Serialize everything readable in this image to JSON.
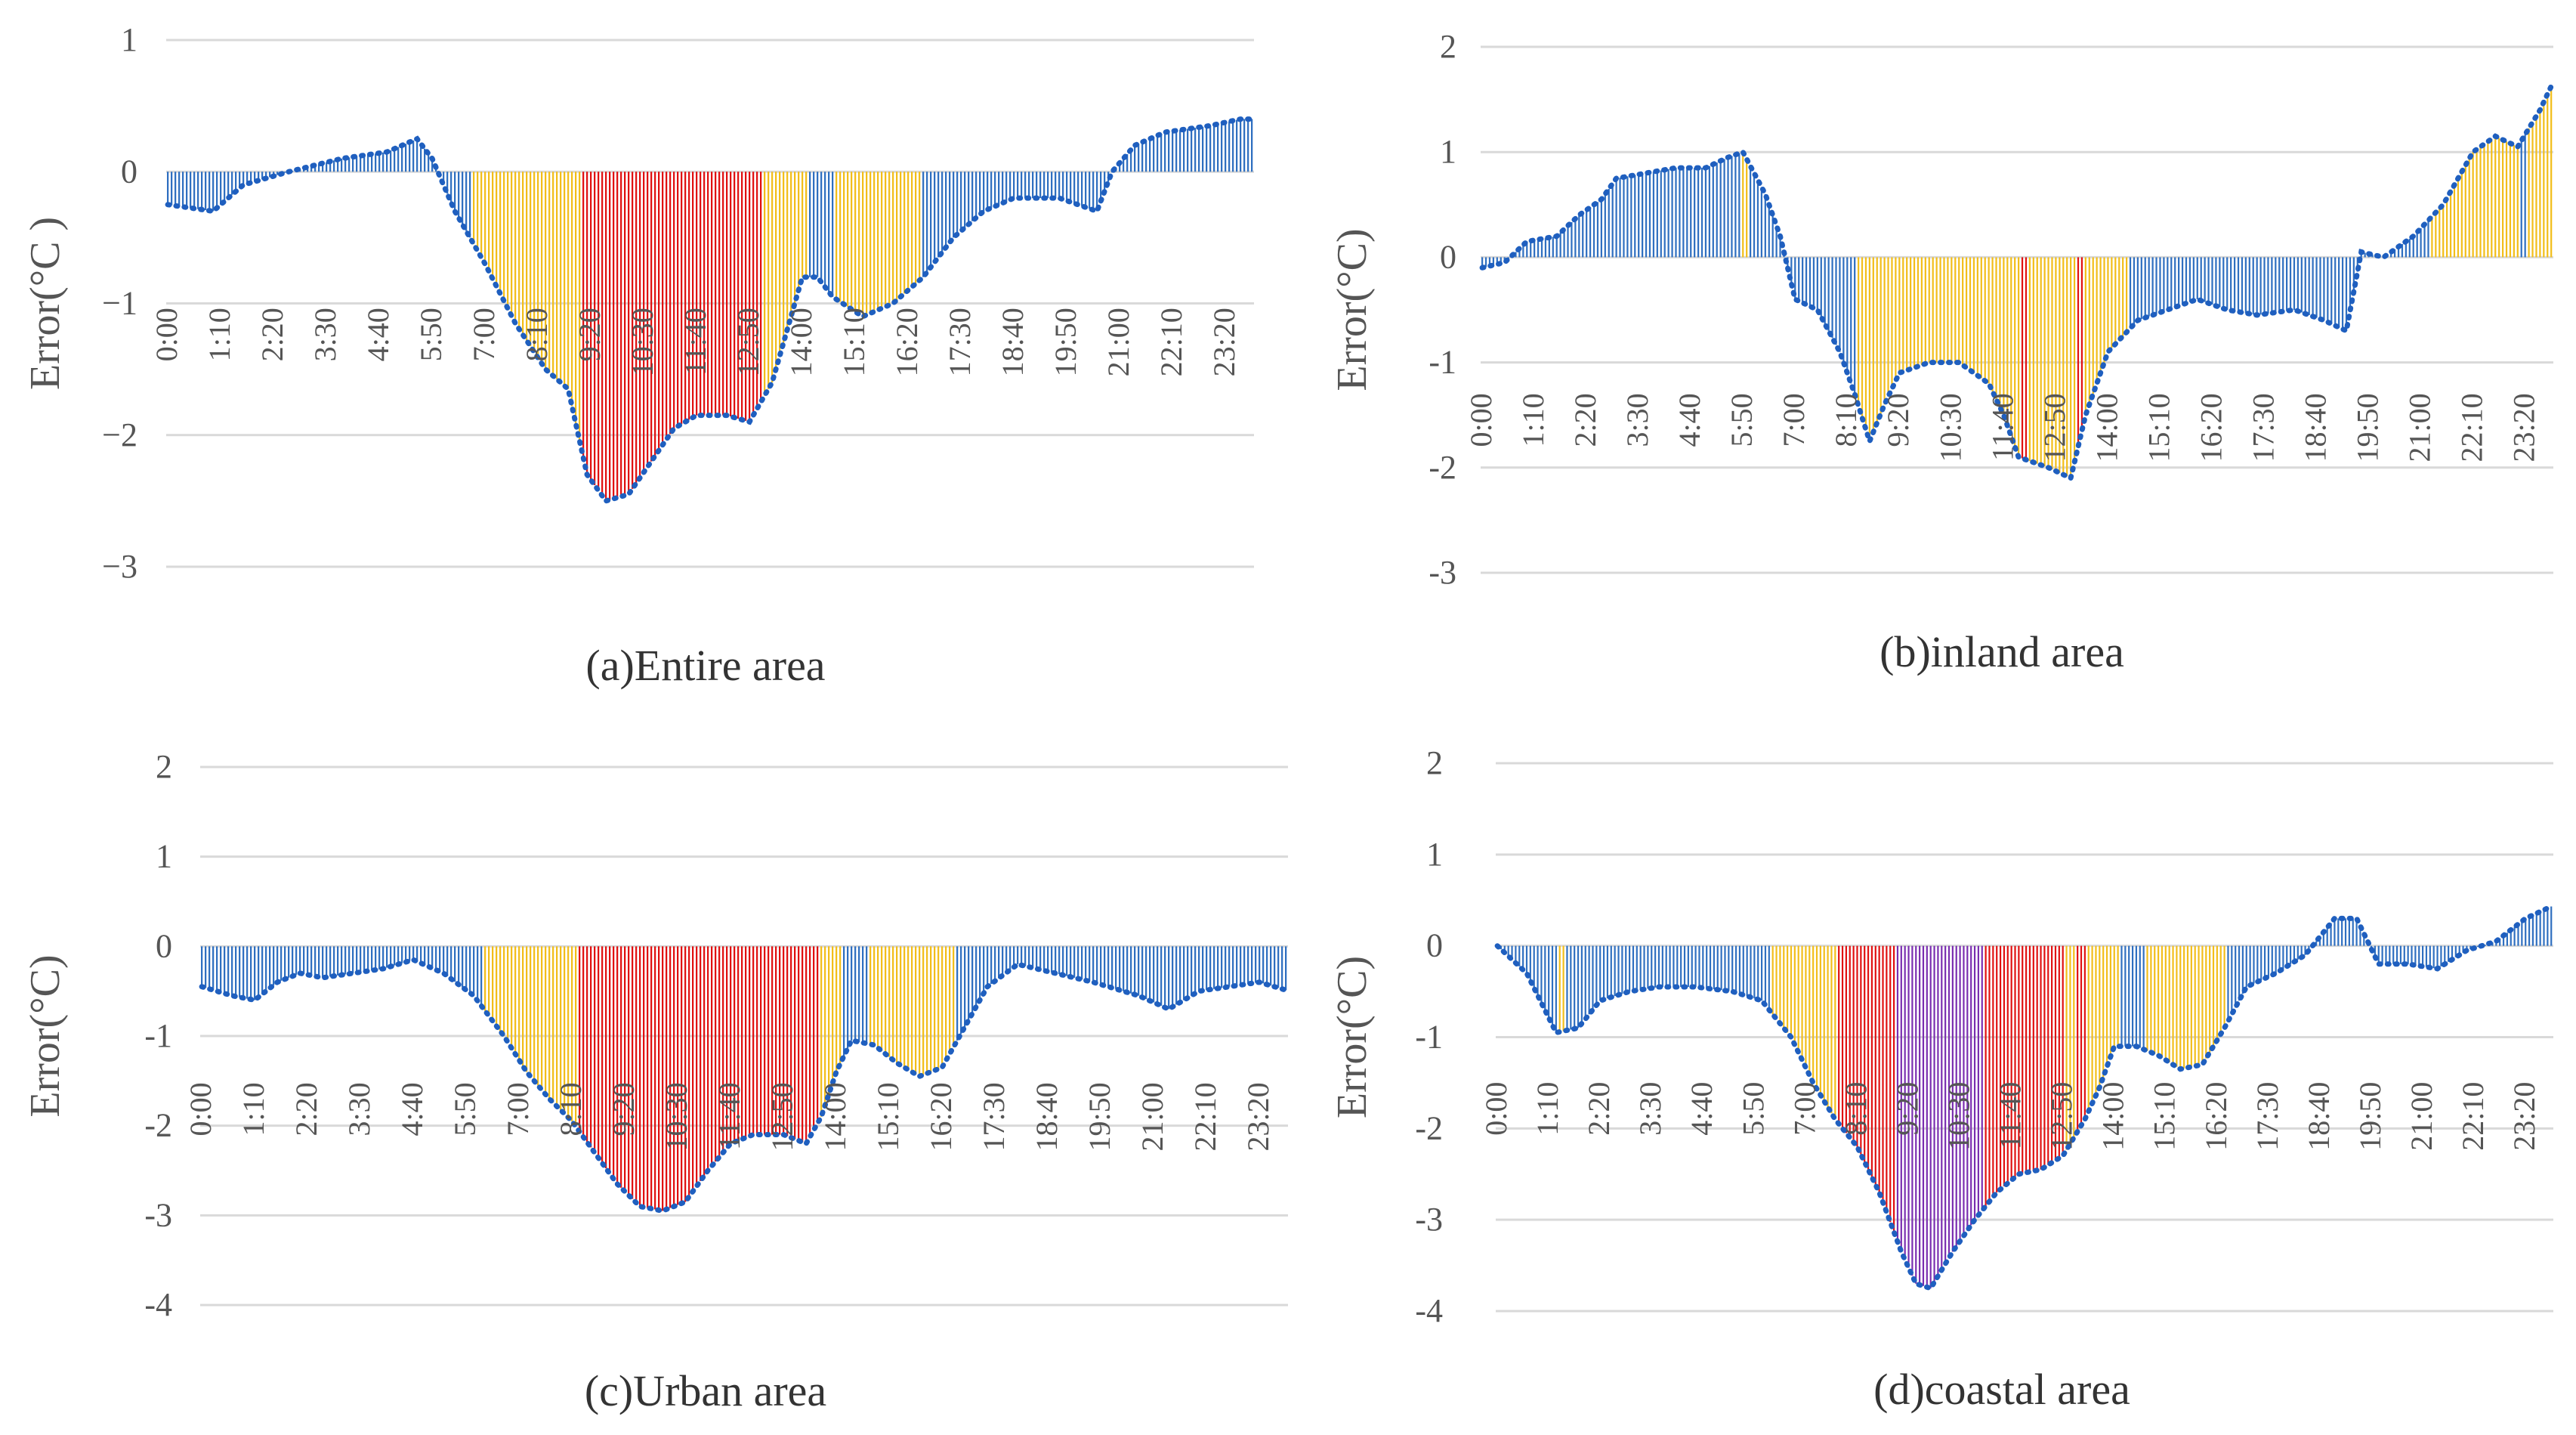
{
  "colors": {
    "blue": "#2F6FC0",
    "yellow": "#F2BE1A",
    "red": "#E01010",
    "purple": "#7A2DB0",
    "grid": "#D9D9D9",
    "text": "#555555",
    "caption": "#333333",
    "dots": "#1F5FBF"
  },
  "chart_data": [
    {
      "id": "entire",
      "type": "bar",
      "title": "(a)Entire area",
      "ylabel": "Error(°C )",
      "ylim": [
        -3,
        1
      ],
      "yticks": [
        1,
        0,
        -1,
        -2,
        -3
      ],
      "ytick_labels": [
        "1",
        "0",
        "−1",
        "−2",
        "−3"
      ],
      "xtick_labels": [
        "0:00",
        "1:10",
        "2:20",
        "3:30",
        "4:40",
        "5:50",
        "7:00",
        "8:10",
        "9:20",
        "10:30",
        "11:40",
        "12:50",
        "14:00",
        "15:10",
        "16:20",
        "17:30",
        "18:40",
        "19:50",
        "21:00",
        "22:10",
        "23:20"
      ],
      "profile": [
        [
          0,
          -0.25
        ],
        [
          60,
          -0.3
        ],
        [
          100,
          -0.1
        ],
        [
          160,
          0.0
        ],
        [
          230,
          0.1
        ],
        [
          290,
          0.15
        ],
        [
          330,
          0.25
        ],
        [
          350,
          0.1
        ],
        [
          380,
          -0.3
        ],
        [
          420,
          -0.7
        ],
        [
          460,
          -1.15
        ],
        [
          500,
          -1.5
        ],
        [
          530,
          -1.65
        ],
        [
          555,
          -2.3
        ],
        [
          580,
          -2.5
        ],
        [
          610,
          -2.45
        ],
        [
          640,
          -2.2
        ],
        [
          670,
          -1.95
        ],
        [
          700,
          -1.85
        ],
        [
          740,
          -1.85
        ],
        [
          770,
          -1.9
        ],
        [
          800,
          -1.6
        ],
        [
          820,
          -1.2
        ],
        [
          840,
          -0.8
        ],
        [
          860,
          -0.8
        ],
        [
          880,
          -0.95
        ],
        [
          920,
          -1.1
        ],
        [
          960,
          -1.0
        ],
        [
          1000,
          -0.8
        ],
        [
          1040,
          -0.5
        ],
        [
          1080,
          -0.3
        ],
        [
          1120,
          -0.2
        ],
        [
          1180,
          -0.2
        ],
        [
          1230,
          -0.3
        ],
        [
          1250,
          0.0
        ],
        [
          1280,
          0.2
        ],
        [
          1320,
          0.3
        ],
        [
          1380,
          0.35
        ],
        [
          1420,
          0.4
        ]
      ],
      "color_bins": [
        {
          "from": 0,
          "to": 405,
          "color": "blue"
        },
        {
          "from": 405,
          "to": 550,
          "color": "yellow"
        },
        {
          "from": 550,
          "to": 790,
          "color": "red"
        },
        {
          "from": 790,
          "to": 850,
          "color": "yellow"
        },
        {
          "from": 850,
          "to": 885,
          "color": "blue"
        },
        {
          "from": 885,
          "to": 1000,
          "color": "yellow"
        },
        {
          "from": 1000,
          "to": 1440,
          "color": "blue"
        }
      ]
    },
    {
      "id": "inland",
      "type": "bar",
      "title": "(b)inland area",
      "ylabel": "Error(°C)",
      "ylim": [
        -3,
        2
      ],
      "yticks": [
        2,
        1,
        0,
        -1,
        -2,
        -3
      ],
      "ytick_labels": [
        "2",
        "1",
        "0",
        "-1",
        "-2",
        "-3"
      ],
      "xtick_labels": [
        "0:00",
        "1:10",
        "2:20",
        "3:30",
        "4:40",
        "5:50",
        "7:00",
        "8:10",
        "9:20",
        "10:30",
        "11:40",
        "12:50",
        "14:00",
        "15:10",
        "16:20",
        "17:30",
        "18:40",
        "19:50",
        "21:00",
        "22:10",
        "23:20"
      ],
      "profile": [
        [
          0,
          -0.1
        ],
        [
          30,
          -0.05
        ],
        [
          60,
          0.15
        ],
        [
          100,
          0.2
        ],
        [
          130,
          0.4
        ],
        [
          160,
          0.55
        ],
        [
          180,
          0.75
        ],
        [
          220,
          0.8
        ],
        [
          260,
          0.85
        ],
        [
          300,
          0.85
        ],
        [
          330,
          0.95
        ],
        [
          350,
          1.0
        ],
        [
          380,
          0.6
        ],
        [
          400,
          0.2
        ],
        [
          420,
          -0.4
        ],
        [
          450,
          -0.5
        ],
        [
          480,
          -0.9
        ],
        [
          500,
          -1.3
        ],
        [
          520,
          -1.75
        ],
        [
          540,
          -1.4
        ],
        [
          560,
          -1.1
        ],
        [
          600,
          -1.0
        ],
        [
          640,
          -1.0
        ],
        [
          680,
          -1.2
        ],
        [
          700,
          -1.5
        ],
        [
          720,
          -1.9
        ],
        [
          740,
          -1.95
        ],
        [
          760,
          -2.0
        ],
        [
          790,
          -2.1
        ],
        [
          810,
          -1.5
        ],
        [
          840,
          -0.9
        ],
        [
          880,
          -0.6
        ],
        [
          920,
          -0.5
        ],
        [
          960,
          -0.4
        ],
        [
          1000,
          -0.5
        ],
        [
          1040,
          -0.55
        ],
        [
          1090,
          -0.5
        ],
        [
          1130,
          -0.6
        ],
        [
          1160,
          -0.7
        ],
        [
          1180,
          0.05
        ],
        [
          1210,
          0.0
        ],
        [
          1250,
          0.2
        ],
        [
          1290,
          0.5
        ],
        [
          1330,
          1.0
        ],
        [
          1360,
          1.15
        ],
        [
          1390,
          1.05
        ],
        [
          1420,
          1.4
        ],
        [
          1440,
          1.7
        ]
      ],
      "color_bins": [
        {
          "from": 0,
          "to": 350,
          "color": "blue"
        },
        {
          "from": 350,
          "to": 358,
          "color": "yellow"
        },
        {
          "from": 358,
          "to": 505,
          "color": "blue"
        },
        {
          "from": 505,
          "to": 725,
          "color": "yellow"
        },
        {
          "from": 725,
          "to": 735,
          "color": "red"
        },
        {
          "from": 735,
          "to": 800,
          "color": "yellow"
        },
        {
          "from": 800,
          "to": 810,
          "color": "red"
        },
        {
          "from": 810,
          "to": 870,
          "color": "yellow"
        },
        {
          "from": 870,
          "to": 1275,
          "color": "blue"
        },
        {
          "from": 1275,
          "to": 1395,
          "color": "yellow"
        },
        {
          "from": 1395,
          "to": 1405,
          "color": "blue"
        },
        {
          "from": 1405,
          "to": 1440,
          "color": "yellow"
        }
      ]
    },
    {
      "id": "urban",
      "type": "bar",
      "title": "(c)Urban area",
      "ylabel": "Error(°C)",
      "ylim": [
        -4,
        2
      ],
      "yticks": [
        2,
        1,
        0,
        -1,
        -2,
        -3,
        -4
      ],
      "ytick_labels": [
        "2",
        "1",
        "0",
        "-1",
        "-2",
        "-3",
        "-4"
      ],
      "xtick_labels": [
        "0:00",
        "1:10",
        "2:20",
        "3:30",
        "4:40",
        "5:50",
        "7:00",
        "8:10",
        "9:20",
        "10:30",
        "11:40",
        "12:50",
        "14:00",
        "15:10",
        "16:20",
        "17:30",
        "18:40",
        "19:50",
        "21:00",
        "22:10",
        "23:20"
      ],
      "profile": [
        [
          0,
          -0.45
        ],
        [
          40,
          -0.55
        ],
        [
          70,
          -0.6
        ],
        [
          100,
          -0.4
        ],
        [
          130,
          -0.3
        ],
        [
          160,
          -0.35
        ],
        [
          200,
          -0.3
        ],
        [
          240,
          -0.25
        ],
        [
          280,
          -0.15
        ],
        [
          320,
          -0.3
        ],
        [
          360,
          -0.55
        ],
        [
          400,
          -1.0
        ],
        [
          430,
          -1.4
        ],
        [
          460,
          -1.7
        ],
        [
          490,
          -1.95
        ],
        [
          520,
          -2.3
        ],
        [
          550,
          -2.65
        ],
        [
          580,
          -2.9
        ],
        [
          610,
          -2.95
        ],
        [
          640,
          -2.85
        ],
        [
          670,
          -2.5
        ],
        [
          700,
          -2.2
        ],
        [
          730,
          -2.1
        ],
        [
          770,
          -2.1
        ],
        [
          800,
          -2.2
        ],
        [
          820,
          -1.9
        ],
        [
          840,
          -1.4
        ],
        [
          860,
          -1.05
        ],
        [
          890,
          -1.1
        ],
        [
          920,
          -1.3
        ],
        [
          950,
          -1.45
        ],
        [
          980,
          -1.35
        ],
        [
          1010,
          -0.9
        ],
        [
          1040,
          -0.45
        ],
        [
          1080,
          -0.2
        ],
        [
          1130,
          -0.3
        ],
        [
          1180,
          -0.4
        ],
        [
          1240,
          -0.55
        ],
        [
          1280,
          -0.7
        ],
        [
          1320,
          -0.5
        ],
        [
          1360,
          -0.45
        ],
        [
          1400,
          -0.4
        ],
        [
          1440,
          -0.5
        ]
      ],
      "color_bins": [
        {
          "from": 0,
          "to": 375,
          "color": "blue"
        },
        {
          "from": 375,
          "to": 500,
          "color": "yellow"
        },
        {
          "from": 500,
          "to": 820,
          "color": "red"
        },
        {
          "from": 820,
          "to": 850,
          "color": "yellow"
        },
        {
          "from": 850,
          "to": 885,
          "color": "blue"
        },
        {
          "from": 885,
          "to": 1000,
          "color": "yellow"
        },
        {
          "from": 1000,
          "to": 1440,
          "color": "blue"
        }
      ]
    },
    {
      "id": "coastal",
      "type": "bar",
      "title": "(d)coastal area",
      "ylabel": "Error(°C)",
      "ylim": [
        -4,
        2
      ],
      "yticks": [
        2,
        1,
        0,
        -1,
        -2,
        -3,
        -4
      ],
      "ytick_labels": [
        "2",
        "1",
        "0",
        "-1",
        "-2",
        "-3",
        "-4"
      ],
      "xtick_labels": [
        "0:00",
        "1:10",
        "2:20",
        "3:30",
        "4:40",
        "5:50",
        "7:00",
        "8:10",
        "9:20",
        "10:30",
        "11:40",
        "12:50",
        "14:00",
        "15:10",
        "16:20",
        "17:30",
        "18:40",
        "19:50",
        "21:00",
        "22:10",
        "23:20"
      ],
      "profile": [
        [
          0,
          0.0
        ],
        [
          40,
          -0.3
        ],
        [
          80,
          -0.95
        ],
        [
          110,
          -0.9
        ],
        [
          140,
          -0.6
        ],
        [
          180,
          -0.5
        ],
        [
          220,
          -0.45
        ],
        [
          270,
          -0.45
        ],
        [
          320,
          -0.5
        ],
        [
          360,
          -0.6
        ],
        [
          400,
          -1.0
        ],
        [
          430,
          -1.5
        ],
        [
          460,
          -1.9
        ],
        [
          490,
          -2.2
        ],
        [
          520,
          -2.7
        ],
        [
          550,
          -3.35
        ],
        [
          570,
          -3.7
        ],
        [
          590,
          -3.75
        ],
        [
          620,
          -3.35
        ],
        [
          650,
          -3.0
        ],
        [
          680,
          -2.7
        ],
        [
          710,
          -2.5
        ],
        [
          740,
          -2.45
        ],
        [
          770,
          -2.3
        ],
        [
          800,
          -1.9
        ],
        [
          820,
          -1.55
        ],
        [
          840,
          -1.1
        ],
        [
          870,
          -1.1
        ],
        [
          900,
          -1.2
        ],
        [
          930,
          -1.35
        ],
        [
          960,
          -1.3
        ],
        [
          990,
          -0.9
        ],
        [
          1020,
          -0.45
        ],
        [
          1060,
          -0.3
        ],
        [
          1100,
          -0.1
        ],
        [
          1140,
          0.3
        ],
        [
          1170,
          0.3
        ],
        [
          1200,
          -0.2
        ],
        [
          1240,
          -0.2
        ],
        [
          1280,
          -0.25
        ],
        [
          1320,
          -0.05
        ],
        [
          1360,
          0.05
        ],
        [
          1400,
          0.3
        ],
        [
          1440,
          0.45
        ]
      ],
      "color_bins": [
        {
          "from": 0,
          "to": 85,
          "color": "blue"
        },
        {
          "from": 85,
          "to": 92,
          "color": "yellow"
        },
        {
          "from": 92,
          "to": 375,
          "color": "blue"
        },
        {
          "from": 375,
          "to": 465,
          "color": "yellow"
        },
        {
          "from": 465,
          "to": 545,
          "color": "red"
        },
        {
          "from": 545,
          "to": 665,
          "color": "purple"
        },
        {
          "from": 665,
          "to": 775,
          "color": "red"
        },
        {
          "from": 775,
          "to": 790,
          "color": "yellow"
        },
        {
          "from": 790,
          "to": 805,
          "color": "red"
        },
        {
          "from": 805,
          "to": 850,
          "color": "yellow"
        },
        {
          "from": 850,
          "to": 885,
          "color": "blue"
        },
        {
          "from": 885,
          "to": 995,
          "color": "yellow"
        },
        {
          "from": 995,
          "to": 1440,
          "color": "blue"
        }
      ]
    }
  ]
}
